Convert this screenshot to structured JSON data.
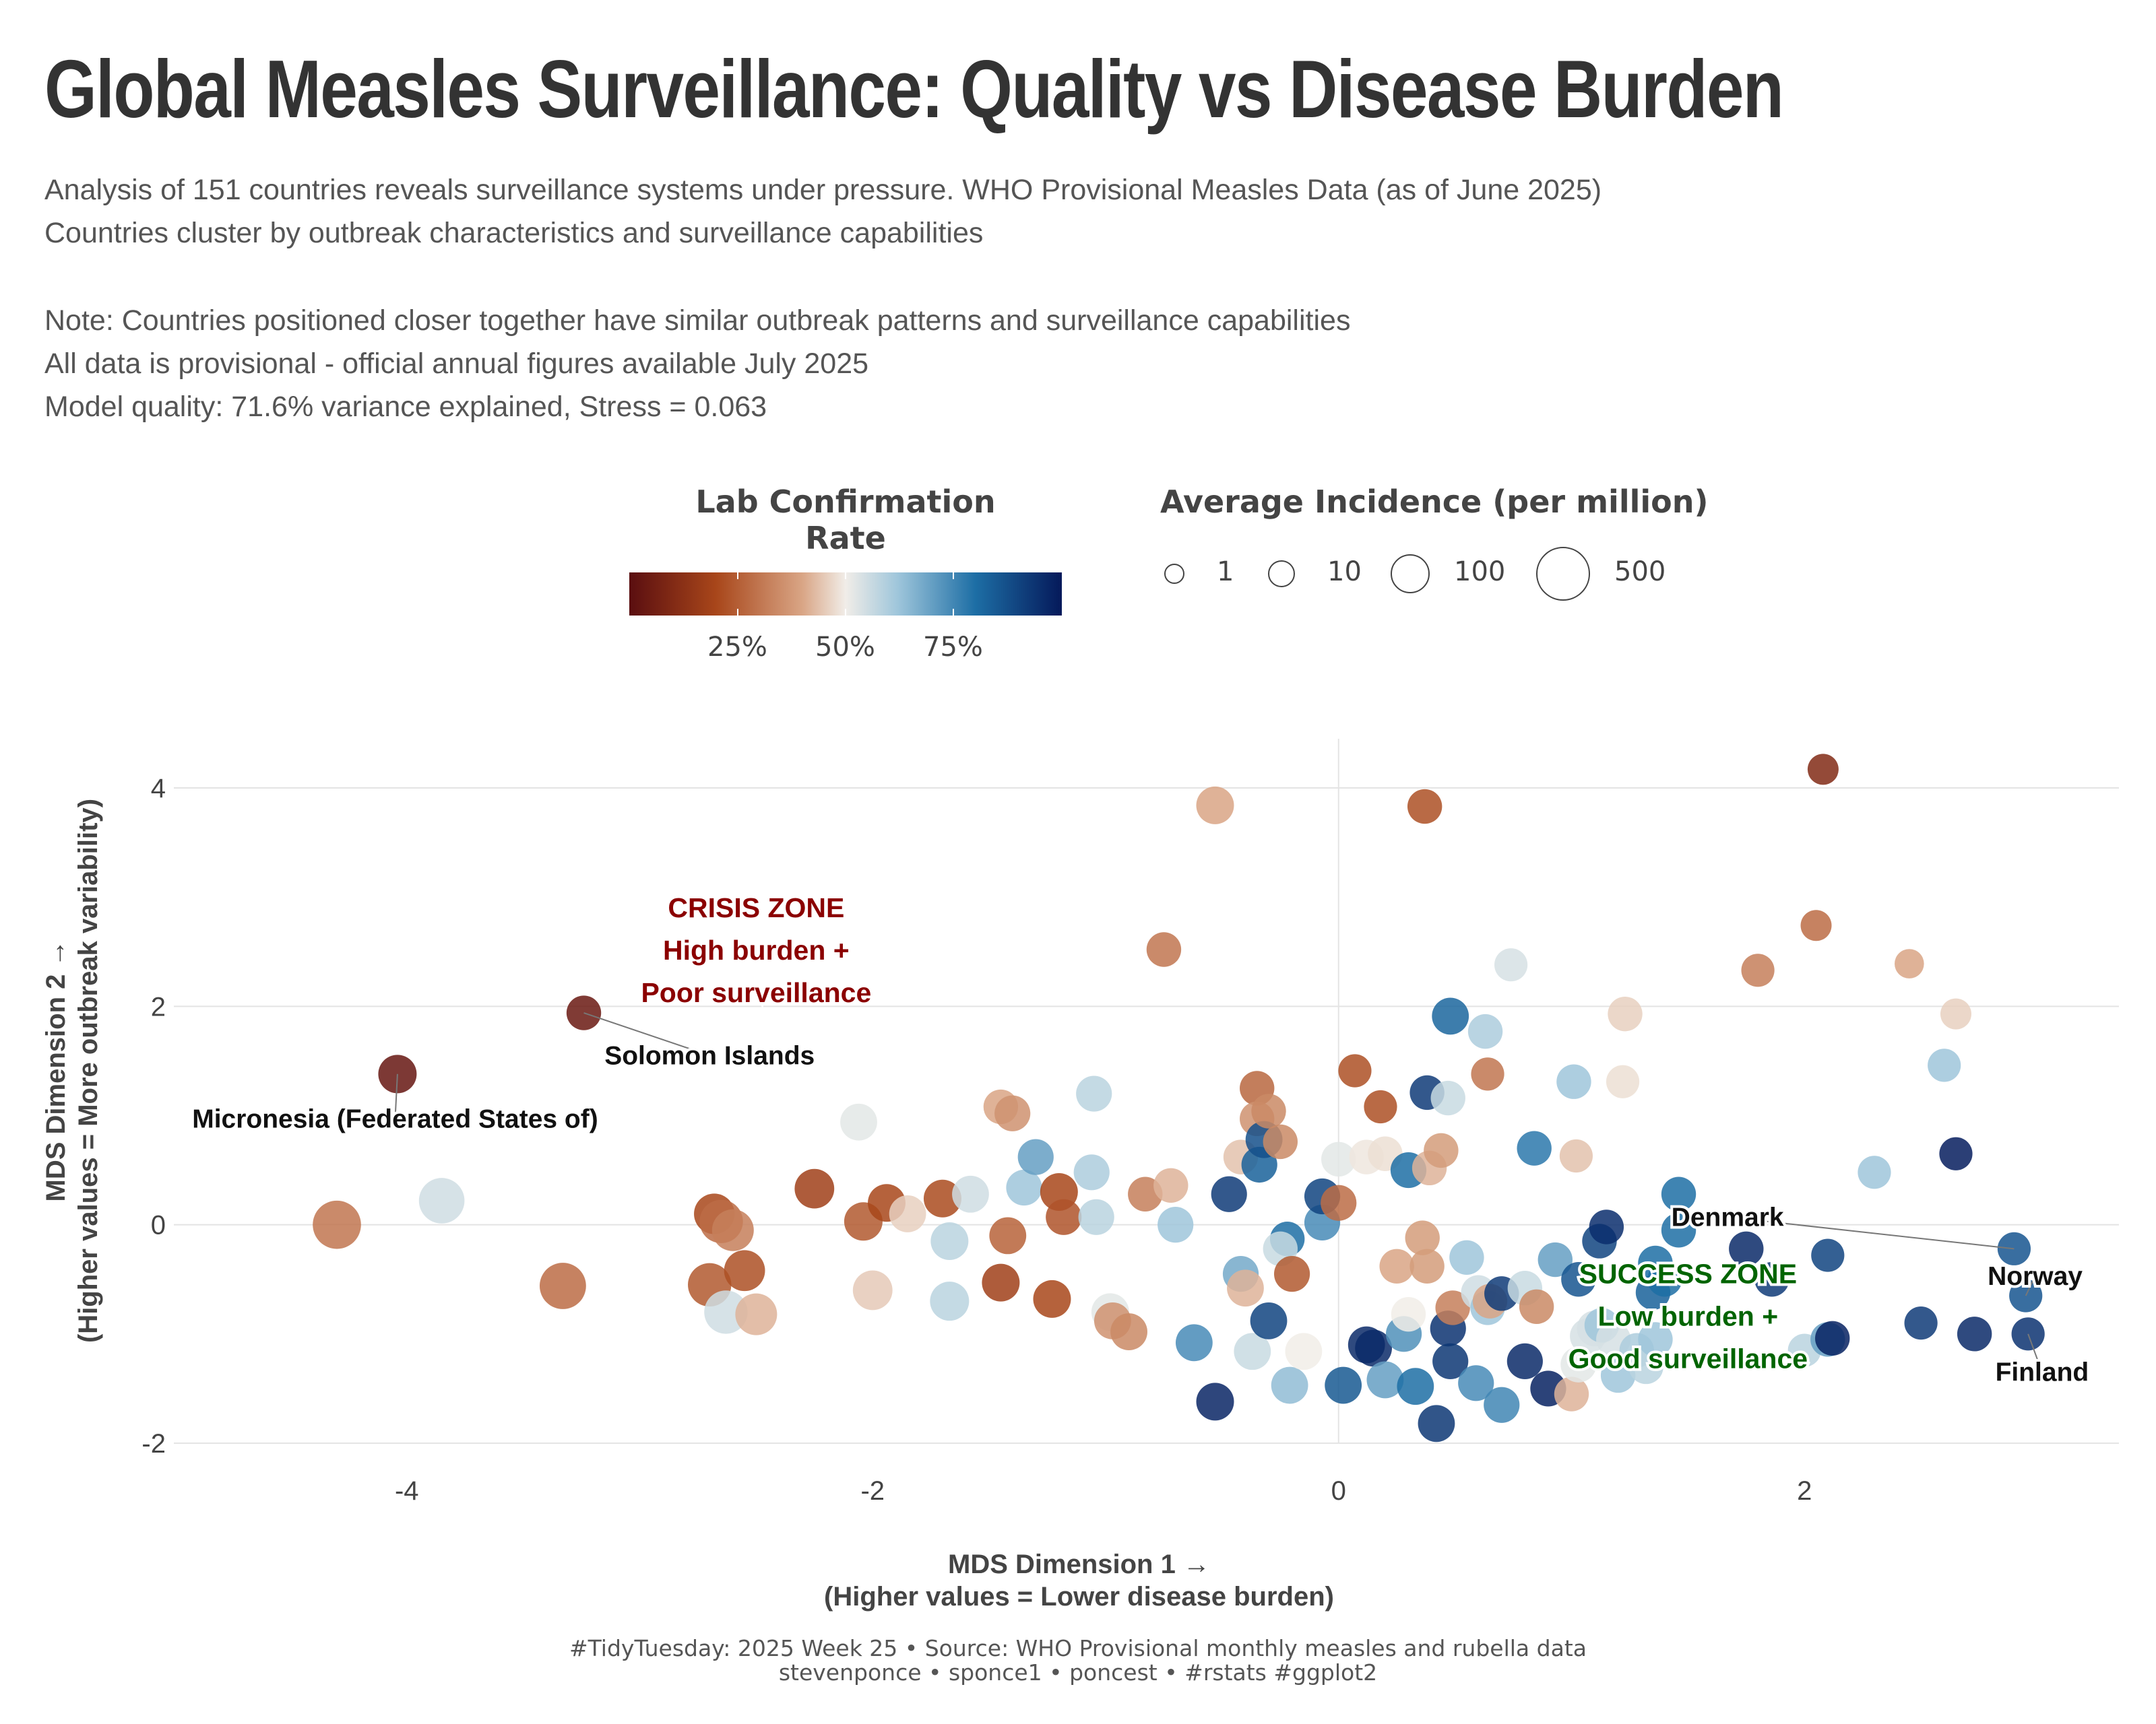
{
  "title": "Global Measles Surveillance: Quality vs Disease Burden",
  "subtitle_lines": [
    "Analysis of 151 countries reveals surveillance systems under pressure. WHO Provisional Measles Data (as of June 2025)",
    "Countries cluster by outbreak characteristics and surveillance capabilities",
    "Note: Countries positioned closer together have similar outbreak patterns and surveillance capabilities",
    "All data is provisional - official annual figures available July 2025",
    "Model quality: 71.6% variance explained, Stress = 0.063"
  ],
  "legend": {
    "color_title": "Lab Confirmation\nRate",
    "color_ticks": [
      "25%",
      "50%",
      "75%"
    ],
    "size_title": "Average Incidence (per million)",
    "size_values": [
      "1",
      "10",
      "100",
      "500"
    ]
  },
  "footer": {
    "line1": "#TidyTuesday: 2025 Week 25 • Source: WHO Provisional monthly measles and rubella data",
    "line2": "stevenponce • sponce1 • poncest • #rstats #ggplot2"
  },
  "colors": {
    "crisis": "#8b0000",
    "success": "#006400"
  },
  "chart_data": {
    "type": "scatter",
    "xlabel": "MDS Dimension 1 →\n(Higher values = Lower disease burden)",
    "ylabel": "MDS Dimension 2 →\n(Higher values = More outbreak variability)",
    "xlim": [
      -5.0,
      3.35
    ],
    "ylim": [
      -2.0,
      4.45
    ],
    "x_ticks": [
      -4,
      -2,
      0,
      2
    ],
    "y_ticks": [
      -2,
      0,
      2,
      4
    ],
    "grid": true,
    "annotations": [
      {
        "text": "CRISIS ZONE\nHigh burden +\nPoor surveillance",
        "x": -2.5,
        "y": 2.15,
        "color": "#8b0000"
      },
      {
        "text": "SUCCESS ZONE\nLow burden +\nGood surveillance",
        "x": 1.5,
        "y": -1.2,
        "color": "#006400"
      }
    ],
    "labels": [
      {
        "text": "Micronesia (Federated States of)",
        "x": -4.05,
        "y": 0.97,
        "px": -4.04,
        "py": 1.38
      },
      {
        "text": "Solomon Islands",
        "x": -2.7,
        "y": 1.55,
        "px": -3.24,
        "py": 1.94
      },
      {
        "text": "Denmark",
        "x": 1.67,
        "y": 0.07,
        "px": 2.9,
        "py": -0.22
      },
      {
        "text": "Norway",
        "x": 2.99,
        "y": -0.47,
        "px": 2.95,
        "py": -0.65
      },
      {
        "text": "Finland",
        "x": 3.02,
        "y": -1.35,
        "px": 2.96,
        "py": -1.0
      }
    ],
    "series": [
      {
        "points": [
          [
            -4.3,
            0.0,
            500,
            30
          ],
          [
            -3.85,
            0.22,
            300,
            55
          ],
          [
            -4.04,
            1.38,
            80,
            3
          ],
          [
            -3.24,
            1.94,
            40,
            4
          ],
          [
            -3.33,
            -0.56,
            350,
            28
          ],
          [
            -2.68,
            0.1,
            120,
            20
          ],
          [
            -2.65,
            0.03,
            200,
            28
          ],
          [
            -2.7,
            -0.55,
            200,
            24
          ],
          [
            -2.6,
            -0.05,
            150,
            32
          ],
          [
            -2.55,
            -0.42,
            130,
            22
          ],
          [
            -2.63,
            -0.8,
            200,
            55
          ],
          [
            -2.5,
            -0.82,
            150,
            42
          ],
          [
            -2.25,
            0.33,
            100,
            18
          ],
          [
            -2.06,
            0.94,
            60,
            52
          ],
          [
            -2.04,
            0.03,
            80,
            24
          ],
          [
            -1.94,
            0.2,
            70,
            20
          ],
          [
            -1.85,
            0.1,
            60,
            46
          ],
          [
            -1.7,
            0.24,
            70,
            21
          ],
          [
            -1.67,
            -0.15,
            70,
            58
          ],
          [
            -1.58,
            0.28,
            60,
            55
          ],
          [
            -2.0,
            -0.6,
            100,
            45
          ],
          [
            -1.67,
            -0.7,
            90,
            58
          ],
          [
            -1.45,
            1.08,
            40,
            40
          ],
          [
            -1.4,
            1.02,
            50,
            36
          ],
          [
            -1.42,
            -0.1,
            60,
            26
          ],
          [
            -1.45,
            -0.53,
            70,
            18
          ],
          [
            -1.23,
            -0.68,
            70,
            20
          ],
          [
            -1.35,
            0.34,
            50,
            62
          ],
          [
            -1.3,
            0.62,
            50,
            70
          ],
          [
            -1.2,
            0.3,
            70,
            20
          ],
          [
            -1.18,
            0.07,
            50,
            23
          ],
          [
            -1.06,
            0.48,
            50,
            60
          ],
          [
            -1.05,
            1.2,
            50,
            58
          ],
          [
            -1.04,
            0.07,
            50,
            58
          ],
          [
            -0.98,
            -0.8,
            70,
            52
          ],
          [
            -0.97,
            -0.88,
            60,
            36
          ],
          [
            -0.9,
            -0.98,
            60,
            34
          ],
          [
            -0.83,
            0.28,
            40,
            32
          ],
          [
            -0.72,
            0.36,
            40,
            42
          ],
          [
            -0.75,
            2.52,
            40,
            30
          ],
          [
            -0.7,
            0.0,
            50,
            62
          ],
          [
            -0.62,
            -1.08,
            60,
            74
          ],
          [
            -0.53,
            3.84,
            70,
            40
          ],
          [
            -0.53,
            -1.62,
            70,
            97
          ],
          [
            -0.47,
            0.28,
            50,
            92
          ],
          [
            -0.42,
            -0.45,
            50,
            68
          ],
          [
            -0.42,
            0.62,
            40,
            44
          ],
          [
            -0.4,
            -0.58,
            60,
            42
          ],
          [
            -0.37,
            -1.16,
            60,
            56
          ],
          [
            -0.35,
            1.25,
            40,
            27
          ],
          [
            -0.35,
            0.97,
            40,
            36
          ],
          [
            -0.34,
            0.55,
            50,
            83
          ],
          [
            -0.32,
            0.78,
            60,
            87
          ],
          [
            -0.3,
            1.04,
            40,
            34
          ],
          [
            -0.3,
            -0.88,
            60,
            90
          ],
          [
            -0.25,
            0.76,
            40,
            34
          ],
          [
            -0.22,
            -0.13,
            40,
            80
          ],
          [
            -0.25,
            -0.22,
            40,
            56
          ],
          [
            -0.21,
            -1.47,
            60,
            64
          ],
          [
            -0.2,
            -0.45,
            50,
            24
          ],
          [
            -0.15,
            -1.16,
            60,
            50
          ],
          [
            -0.07,
            0.02,
            50,
            74
          ],
          [
            -0.07,
            0.26,
            50,
            90
          ],
          [
            0.0,
            0.2,
            50,
            28
          ],
          [
            0.0,
            0.6,
            40,
            52
          ],
          [
            0.02,
            -1.47,
            60,
            85
          ],
          [
            0.07,
            1.41,
            30,
            22
          ],
          [
            0.12,
            -1.1,
            60,
            96
          ],
          [
            0.12,
            0.62,
            40,
            49
          ],
          [
            0.15,
            -1.13,
            60,
            96
          ],
          [
            0.18,
            1.08,
            30,
            22
          ],
          [
            0.2,
            0.65,
            40,
            48
          ],
          [
            0.2,
            -1.42,
            60,
            70
          ],
          [
            0.25,
            -0.38,
            40,
            40
          ],
          [
            0.28,
            -1.0,
            50,
            73
          ],
          [
            0.3,
            -0.82,
            40,
            50
          ],
          [
            0.3,
            0.5,
            50,
            80
          ],
          [
            0.33,
            -1.48,
            60,
            80
          ],
          [
            0.36,
            -0.12,
            40,
            38
          ],
          [
            0.37,
            3.83,
            40,
            22
          ],
          [
            0.38,
            1.21,
            40,
            92
          ],
          [
            0.38,
            -0.38,
            40,
            38
          ],
          [
            0.39,
            0.52,
            40,
            42
          ],
          [
            0.42,
            -1.82,
            60,
            93
          ],
          [
            0.44,
            0.68,
            40,
            38
          ],
          [
            0.47,
            -0.95,
            50,
            94
          ],
          [
            0.47,
            1.16,
            40,
            56
          ],
          [
            0.48,
            -1.25,
            50,
            93
          ],
          [
            0.48,
            1.91,
            60,
            82
          ],
          [
            0.49,
            -0.76,
            40,
            32
          ],
          [
            0.55,
            -0.3,
            40,
            62
          ],
          [
            0.59,
            -1.45,
            50,
            74
          ],
          [
            0.6,
            -0.62,
            40,
            55
          ],
          [
            0.63,
            1.77,
            40,
            60
          ],
          [
            0.64,
            -0.76,
            40,
            62
          ],
          [
            0.64,
            1.38,
            30,
            30
          ],
          [
            0.65,
            -0.7,
            40,
            40
          ],
          [
            0.7,
            -1.65,
            50,
            75
          ],
          [
            0.7,
            -0.63,
            40,
            92
          ],
          [
            0.74,
            2.38,
            30,
            54
          ],
          [
            0.8,
            -0.58,
            40,
            56
          ],
          [
            0.8,
            -1.25,
            50,
            96
          ],
          [
            0.84,
            0.7,
            40,
            78
          ],
          [
            0.85,
            -0.75,
            40,
            34
          ],
          [
            0.9,
            -1.5,
            50,
            98
          ],
          [
            0.93,
            -0.32,
            40,
            70
          ],
          [
            1.0,
            -1.55,
            40,
            42
          ],
          [
            1.01,
            1.31,
            40,
            62
          ],
          [
            1.03,
            -1.28,
            50,
            52
          ],
          [
            1.02,
            0.63,
            30,
            44
          ],
          [
            1.03,
            -0.5,
            40,
            86
          ],
          [
            1.07,
            -1.02,
            50,
            54
          ],
          [
            1.1,
            -0.95,
            50,
            54
          ],
          [
            1.12,
            -0.15,
            40,
            90
          ],
          [
            1.13,
            -0.92,
            40,
            62
          ],
          [
            1.15,
            -0.02,
            40,
            95
          ],
          [
            1.18,
            -1.05,
            40,
            54
          ],
          [
            1.2,
            -1.38,
            40,
            62
          ],
          [
            1.22,
            1.31,
            30,
            48
          ],
          [
            1.23,
            1.93,
            40,
            46
          ],
          [
            1.28,
            -1.15,
            40,
            60
          ],
          [
            1.32,
            -1.3,
            40,
            58
          ],
          [
            1.35,
            -0.62,
            40,
            83
          ],
          [
            1.36,
            -0.35,
            40,
            80
          ],
          [
            1.36,
            -1.05,
            40,
            62
          ],
          [
            1.4,
            -0.5,
            40,
            80
          ],
          [
            1.46,
            0.28,
            40,
            80
          ],
          [
            1.46,
            -0.05,
            40,
            80
          ],
          [
            1.75,
            -0.22,
            40,
            96
          ],
          [
            1.8,
            2.33,
            30,
            32
          ],
          [
            1.86,
            -0.5,
            40,
            92
          ],
          [
            2.0,
            -1.15,
            30,
            58
          ],
          [
            2.05,
            2.74,
            20,
            28
          ],
          [
            2.08,
            4.17,
            20,
            10
          ],
          [
            2.1,
            -1.05,
            40,
            70
          ],
          [
            2.1,
            -0.28,
            30,
            90
          ],
          [
            2.12,
            -1.04,
            40,
            98
          ],
          [
            2.3,
            0.48,
            30,
            62
          ],
          [
            2.45,
            2.39,
            15,
            40
          ],
          [
            2.5,
            -0.9,
            30,
            92
          ],
          [
            2.6,
            1.46,
            30,
            62
          ],
          [
            2.65,
            1.93,
            20,
            46
          ],
          [
            2.65,
            0.65,
            30,
            99
          ],
          [
            2.73,
            -1.0,
            40,
            96
          ],
          [
            2.9,
            -0.22,
            30,
            86
          ],
          [
            2.95,
            -0.65,
            30,
            86
          ],
          [
            2.96,
            -1.0,
            30,
            94
          ]
        ]
      }
    ]
  }
}
